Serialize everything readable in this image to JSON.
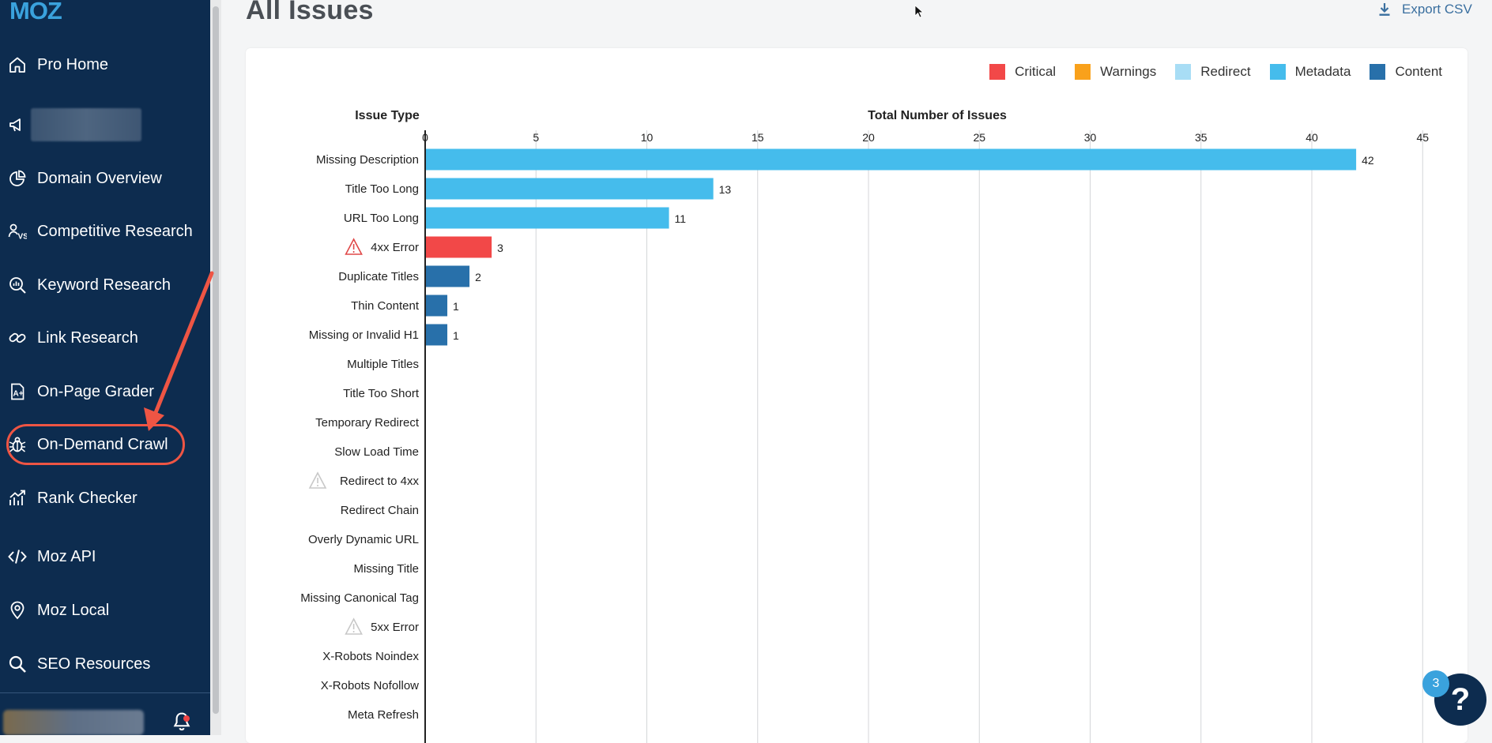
{
  "sidebar": {
    "logo": "MOZ",
    "items": [
      {
        "label": "Pro Home",
        "icon": "home-icon",
        "name": "pro-home"
      },
      {
        "label": "",
        "icon": "megaphone-icon",
        "name": "campaign"
      },
      {
        "label": "Domain Overview",
        "icon": "pie-chart-icon",
        "name": "domain-overview"
      },
      {
        "label": "Competitive Research",
        "icon": "versus-icon",
        "name": "competitive-research"
      },
      {
        "label": "Keyword Research",
        "icon": "keyword-search-icon",
        "name": "keyword-research"
      },
      {
        "label": "Link Research",
        "icon": "link-icon",
        "name": "link-research"
      },
      {
        "label": "On-Page Grader",
        "icon": "grade-icon",
        "name": "on-page-grader"
      },
      {
        "label": "On-Demand Crawl",
        "icon": "bug-icon",
        "name": "on-demand-crawl"
      },
      {
        "label": "Rank Checker",
        "icon": "trend-icon",
        "name": "rank-checker"
      },
      {
        "label": "Moz API",
        "icon": "code-icon",
        "name": "moz-api"
      },
      {
        "label": "Moz Local",
        "icon": "location-pin-icon",
        "name": "moz-local"
      },
      {
        "label": "SEO Resources",
        "icon": "search-icon",
        "name": "seo-resources"
      }
    ]
  },
  "header": {
    "title": "All Issues",
    "export_label": "Export CSV"
  },
  "help": {
    "badge_count": "3",
    "icon_label": "?"
  },
  "chart_data": {
    "type": "bar",
    "orientation": "horizontal",
    "category_header": "Issue Type",
    "value_header": "Total Number of Issues",
    "xlim": [
      0,
      45
    ],
    "ticks": [
      "0",
      "5",
      "10",
      "15",
      "20",
      "25",
      "30",
      "35",
      "40",
      "45"
    ],
    "grid": true,
    "legend_position": "top-right",
    "legend": [
      {
        "name": "Critical",
        "color": "#f24848"
      },
      {
        "name": "Warnings",
        "color": "#f9a11b"
      },
      {
        "name": "Redirect",
        "color": "#a8ddf5"
      },
      {
        "name": "Metadata",
        "color": "#45bcec"
      },
      {
        "name": "Content",
        "color": "#2870aa"
      }
    ],
    "categories": [
      {
        "label": "Missing Description",
        "value": 42,
        "group": "Metadata",
        "warn": ""
      },
      {
        "label": "Title Too Long",
        "value": 13,
        "group": "Metadata",
        "warn": ""
      },
      {
        "label": "URL Too Long",
        "value": 11,
        "group": "Metadata",
        "warn": ""
      },
      {
        "label": "4xx Error",
        "value": 3,
        "group": "Critical",
        "warn": "active"
      },
      {
        "label": "Duplicate Titles",
        "value": 2,
        "group": "Content",
        "warn": ""
      },
      {
        "label": "Thin Content",
        "value": 1,
        "group": "Content",
        "warn": ""
      },
      {
        "label": "Missing or Invalid H1",
        "value": 1,
        "group": "Content",
        "warn": ""
      },
      {
        "label": "Multiple Titles",
        "value": 0,
        "group": "Metadata",
        "warn": ""
      },
      {
        "label": "Title Too Short",
        "value": 0,
        "group": "Metadata",
        "warn": ""
      },
      {
        "label": "Temporary Redirect",
        "value": 0,
        "group": "Redirect",
        "warn": ""
      },
      {
        "label": "Slow Load Time",
        "value": 0,
        "group": "Content",
        "warn": ""
      },
      {
        "label": "Redirect to 4xx",
        "value": 0,
        "group": "Critical",
        "warn": "inactive"
      },
      {
        "label": "Redirect Chain",
        "value": 0,
        "group": "Redirect",
        "warn": ""
      },
      {
        "label": "Overly Dynamic URL",
        "value": 0,
        "group": "Metadata",
        "warn": ""
      },
      {
        "label": "Missing Title",
        "value": 0,
        "group": "Metadata",
        "warn": ""
      },
      {
        "label": "Missing Canonical Tag",
        "value": 0,
        "group": "Metadata",
        "warn": ""
      },
      {
        "label": "5xx Error",
        "value": 0,
        "group": "Critical",
        "warn": "inactive"
      },
      {
        "label": "X-Robots Noindex",
        "value": 0,
        "group": "Metadata",
        "warn": ""
      },
      {
        "label": "X-Robots Nofollow",
        "value": 0,
        "group": "Metadata",
        "warn": ""
      },
      {
        "label": "Meta Refresh",
        "value": 0,
        "group": "Redirect",
        "warn": ""
      }
    ]
  },
  "colors": {
    "sidebar_bg": "#0d2c4f",
    "accent": "#3aa2dd",
    "annotation": "#ee5544"
  }
}
